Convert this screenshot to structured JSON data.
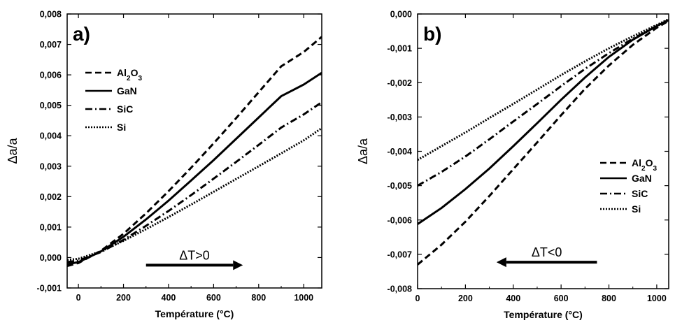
{
  "chart_data": [
    {
      "type": "line",
      "panel_label": "a)",
      "xlabel": "Température (°C)",
      "ylabel": "Δa/a",
      "xlim": [
        -50,
        1080
      ],
      "ylim": [
        -0.001,
        0.008
      ],
      "xticks": [
        0,
        200,
        400,
        600,
        800,
        1000
      ],
      "yticks": [
        -0.001,
        0.0,
        0.001,
        0.002,
        0.003,
        0.004,
        0.005,
        0.006,
        0.007,
        0.008
      ],
      "ytick_labels": [
        "-0,001",
        "0,000",
        "0,001",
        "0,002",
        "0,003",
        "0,004",
        "0,005",
        "0,006",
        "0,007",
        "0,008"
      ],
      "grid": false,
      "legend_position": "top-left",
      "series": [
        {
          "name": "Al2O3",
          "dash": "dashed",
          "x": [
            -50,
            0,
            100,
            200,
            300,
            400,
            500,
            600,
            700,
            800,
            900,
            1000,
            1080
          ],
          "y": [
            -0.00028,
            -0.00018,
            0.00022,
            0.00078,
            0.00145,
            0.00218,
            0.00295,
            0.00375,
            0.00458,
            0.00543,
            0.00628,
            0.00675,
            0.00725
          ]
        },
        {
          "name": "GaN",
          "dash": "solid",
          "x": [
            -50,
            0,
            100,
            200,
            300,
            400,
            500,
            600,
            700,
            800,
            900,
            1000,
            1080
          ],
          "y": [
            -0.00022,
            -0.00015,
            0.0002,
            0.00068,
            0.00125,
            0.00187,
            0.00253,
            0.0032,
            0.0039,
            0.0046,
            0.0053,
            0.00568,
            0.00607
          ]
        },
        {
          "name": "SiC",
          "dash": "dashdot",
          "x": [
            -50,
            0,
            100,
            200,
            300,
            400,
            500,
            600,
            700,
            800,
            900,
            1000,
            1080
          ],
          "y": [
            -0.00015,
            -0.0001,
            0.00018,
            0.00058,
            0.00104,
            0.00153,
            0.00205,
            0.00259,
            0.00314,
            0.0037,
            0.00427,
            0.0047,
            0.0051
          ]
        },
        {
          "name": "Si",
          "dash": "dotted",
          "x": [
            -50,
            0,
            100,
            200,
            300,
            400,
            500,
            600,
            700,
            800,
            900,
            1000,
            1080
          ],
          "y": [
            -8e-05,
            -4e-05,
            0.0002,
            0.00055,
            0.00093,
            0.00133,
            0.00174,
            0.00216,
            0.00258,
            0.003,
            0.00342,
            0.00385,
            0.00425
          ]
        }
      ],
      "annotation": {
        "text": "ΔT>0",
        "arrow_from_x": 300,
        "arrow_to_x": 730,
        "arrow_y": -0.00025,
        "direction": "right"
      }
    },
    {
      "type": "line",
      "panel_label": "b)",
      "xlabel": "Température (°C)",
      "ylabel": "Δa/a",
      "xlim": [
        0,
        1050
      ],
      "ylim": [
        -0.008,
        0.0
      ],
      "xticks": [
        0,
        200,
        400,
        600,
        800,
        1000
      ],
      "yticks": [
        -0.008,
        -0.007,
        -0.006,
        -0.005,
        -0.004,
        -0.003,
        -0.002,
        -0.001,
        0.0
      ],
      "ytick_labels": [
        "-0,008",
        "-0,007",
        "-0,006",
        "-0,005",
        "-0,004",
        "-0,003",
        "-0,002",
        "-0,001",
        "0,000"
      ],
      "grid": false,
      "legend_position": "center-right",
      "series": [
        {
          "name": "Al2O3",
          "dash": "dashed",
          "x": [
            0,
            100,
            200,
            300,
            400,
            500,
            600,
            700,
            800,
            900,
            1000,
            1050
          ],
          "y": [
            -0.0073,
            -0.00672,
            -0.00605,
            -0.0053,
            -0.00452,
            -0.00374,
            -0.00295,
            -0.00218,
            -0.0015,
            -0.0009,
            -0.0004,
            -0.0002
          ]
        },
        {
          "name": "GaN",
          "dash": "solid",
          "x": [
            0,
            100,
            200,
            300,
            400,
            500,
            600,
            700,
            800,
            900,
            1000,
            1050
          ],
          "y": [
            -0.00612,
            -0.00565,
            -0.0051,
            -0.0045,
            -0.00385,
            -0.00318,
            -0.0025,
            -0.00185,
            -0.00125,
            -0.00075,
            -0.00035,
            -0.00018
          ]
        },
        {
          "name": "SiC",
          "dash": "dashdot",
          "x": [
            0,
            100,
            200,
            300,
            400,
            500,
            600,
            700,
            800,
            900,
            1000,
            1050
          ],
          "y": [
            -0.005,
            -0.0046,
            -0.00415,
            -0.00365,
            -0.00313,
            -0.00262,
            -0.0021,
            -0.0016,
            -0.00114,
            -0.00072,
            -0.00035,
            -0.00017
          ]
        },
        {
          "name": "Si",
          "dash": "dotted",
          "x": [
            0,
            100,
            200,
            300,
            400,
            500,
            600,
            700,
            800,
            900,
            1000,
            1050
          ],
          "y": [
            -0.00425,
            -0.00385,
            -0.00345,
            -0.00303,
            -0.00262,
            -0.0022,
            -0.00178,
            -0.00138,
            -0.001,
            -0.00065,
            -0.00032,
            -0.00015
          ]
        }
      ],
      "annotation": {
        "text": "ΔT<0",
        "arrow_from_x": 750,
        "arrow_to_x": 330,
        "arrow_y": -0.00723,
        "direction": "left"
      }
    }
  ]
}
